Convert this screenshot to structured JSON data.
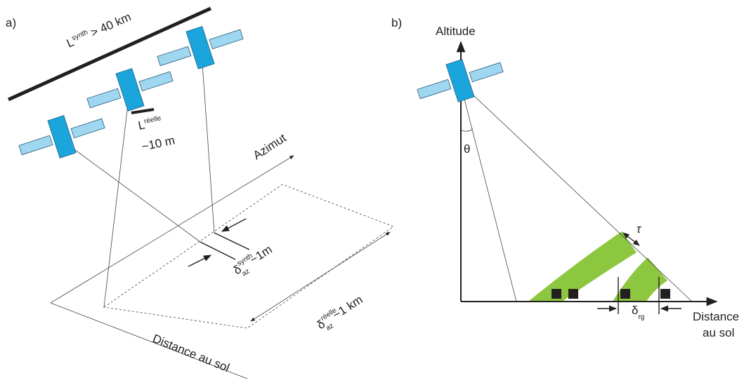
{
  "panel_a": {
    "label": "a)",
    "l_synth": {
      "symbol": "L",
      "superscript": "synth",
      "text": "> 40 km"
    },
    "l_reelle": {
      "symbol": "L",
      "superscript": "réelle",
      "text": "~10 m"
    },
    "azimuth_axis": "Azimut",
    "delta_az_synth": {
      "symbol": "δ",
      "superscript": "synth",
      "subscript": "az",
      "text": "~1m"
    },
    "delta_az_reelle": {
      "symbol": "δ",
      "superscript": "réelle",
      "subscript": "az",
      "text": "~1 km"
    },
    "ground_range_axis": "Distance au sol"
  },
  "panel_b": {
    "label": "b)",
    "altitude_axis": "Altitude",
    "theta": "θ",
    "tau": "τ",
    "delta_rg": {
      "symbol": "δ",
      "subscript": "rg"
    },
    "ground_range_axis": [
      "Distance",
      "au sol"
    ]
  }
}
